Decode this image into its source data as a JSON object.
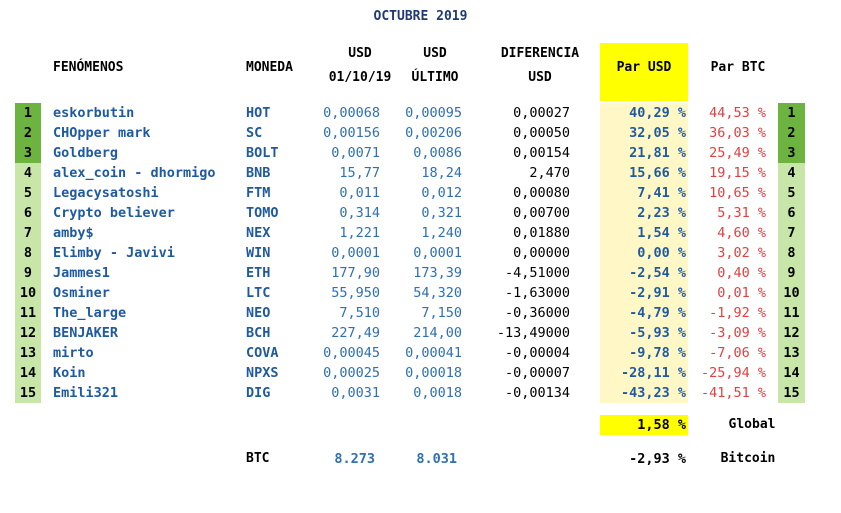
{
  "title": "OCTUBRE 2019",
  "headers": {
    "fenomenos": "FENÓMENOS",
    "moneda": "MONEDA",
    "usd_start_1": "USD",
    "usd_start_2": "01/10/19",
    "usd_last_1": "USD",
    "usd_last_2": "ÚLTIMO",
    "diff_1": "DIFERENCIA",
    "diff_2": "USD",
    "par_usd": "Par USD",
    "par_btc": "Par BTC"
  },
  "rows": [
    {
      "rank": "1",
      "name": "eskorbutin",
      "coin": "HOT",
      "usd_start": "0,00068",
      "usd_last": "0,00095",
      "diff": "0,00027",
      "par_usd": "40,29 %",
      "par_btc": "44,53 %"
    },
    {
      "rank": "2",
      "name": "CHOpper mark",
      "coin": "SC",
      "usd_start": "0,00156",
      "usd_last": "0,00206",
      "diff": "0,00050",
      "par_usd": "32,05 %",
      "par_btc": "36,03 %"
    },
    {
      "rank": "3",
      "name": "Goldberg",
      "coin": "BOLT",
      "usd_start": "0,0071",
      "usd_last": "0,0086",
      "diff": "0,00154",
      "par_usd": "21,81 %",
      "par_btc": "25,49 %"
    },
    {
      "rank": "4",
      "name": "alex_coin - dhormigo",
      "coin": "BNB",
      "usd_start": "15,77",
      "usd_last": "18,24",
      "diff": "2,470",
      "par_usd": "15,66 %",
      "par_btc": "19,15 %"
    },
    {
      "rank": "5",
      "name": "Legacysatoshi",
      "coin": "FTM",
      "usd_start": "0,011",
      "usd_last": "0,012",
      "diff": "0,00080",
      "par_usd": "7,41 %",
      "par_btc": "10,65 %"
    },
    {
      "rank": "6",
      "name": "Crypto believer",
      "coin": "TOMO",
      "usd_start": "0,314",
      "usd_last": "0,321",
      "diff": "0,00700",
      "par_usd": "2,23 %",
      "par_btc": "5,31 %"
    },
    {
      "rank": "7",
      "name": "amby$",
      "coin": "NEX",
      "usd_start": "1,221",
      "usd_last": "1,240",
      "diff": "0,01880",
      "par_usd": "1,54 %",
      "par_btc": "4,60 %"
    },
    {
      "rank": "8",
      "name": "Elimby - Javivi",
      "coin": "WIN",
      "usd_start": "0,0001",
      "usd_last": "0,0001",
      "diff": "0,00000",
      "par_usd": "0,00 %",
      "par_btc": "3,02 %"
    },
    {
      "rank": "9",
      "name": "Jammes1",
      "coin": "ETH",
      "usd_start": "177,90",
      "usd_last": "173,39",
      "diff": "-4,51000",
      "par_usd": "-2,54 %",
      "par_btc": "0,40 %"
    },
    {
      "rank": "10",
      "name": "Osminer",
      "coin": "LTC",
      "usd_start": "55,950",
      "usd_last": "54,320",
      "diff": "-1,63000",
      "par_usd": "-2,91 %",
      "par_btc": "0,01 %"
    },
    {
      "rank": "11",
      "name": "The_large",
      "coin": "NEO",
      "usd_start": "7,510",
      "usd_last": "7,150",
      "diff": "-0,36000",
      "par_usd": "-4,79 %",
      "par_btc": "-1,92 %"
    },
    {
      "rank": "12",
      "name": "BENJAKER",
      "coin": "BCH",
      "usd_start": "227,49",
      "usd_last": "214,00",
      "diff": "-13,49000",
      "par_usd": "-5,93 %",
      "par_btc": "-3,09 %"
    },
    {
      "rank": "13",
      "name": "mirto",
      "coin": "COVA",
      "usd_start": "0,00045",
      "usd_last": "0,00041",
      "diff": "-0,00004",
      "par_usd": "-9,78 %",
      "par_btc": "-7,06 %"
    },
    {
      "rank": "14",
      "name": "Koin",
      "coin": "NPXS",
      "usd_start": "0,00025",
      "usd_last": "0,00018",
      "diff": "-0,00007",
      "par_usd": "-28,11 %",
      "par_btc": "-25,94 %"
    },
    {
      "rank": "15",
      "name": "Emili321",
      "coin": "DIG",
      "usd_start": "0,0031",
      "usd_last": "0,0018",
      "diff": "-0,00134",
      "par_usd": "-43,23 %",
      "par_btc": "-41,51 %"
    }
  ],
  "global": {
    "value": "1,58 %",
    "label": "Global"
  },
  "btc": {
    "coin": "BTC",
    "usd_start": "8.273",
    "usd_last": "8.031",
    "value": "-2,93 %",
    "label": "Bitcoin"
  },
  "colors": {
    "title": "#1f3a74",
    "blue": "#1f5aa0",
    "red": "#e04040",
    "yellow": "#ffff00",
    "light_yellow": "#fff8c6",
    "green_dark": "#6db33f",
    "green_light": "#c8e6a8"
  }
}
